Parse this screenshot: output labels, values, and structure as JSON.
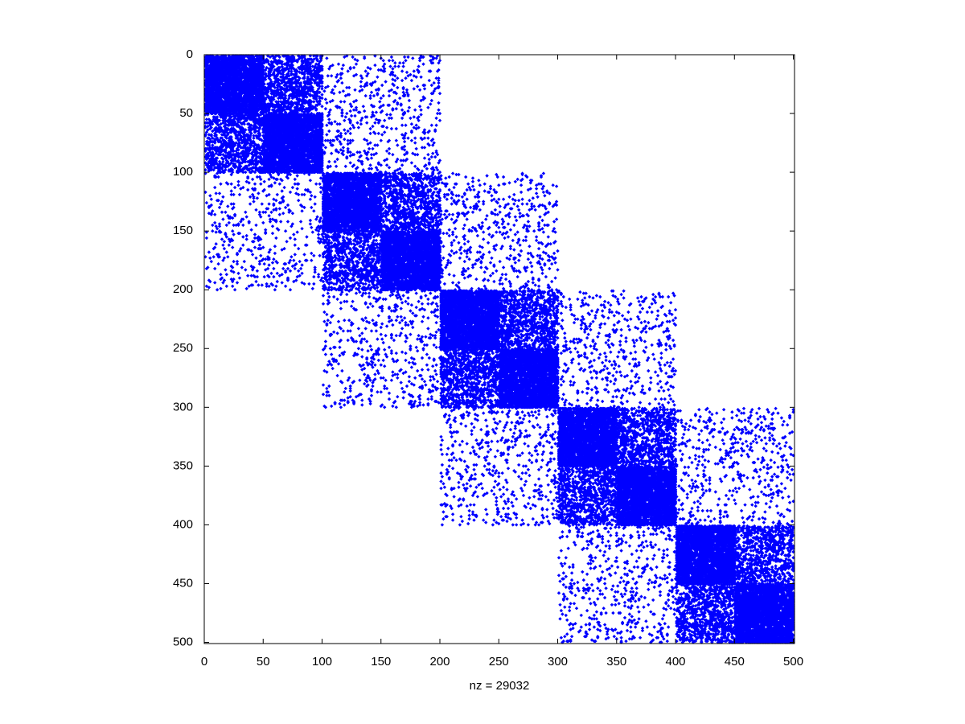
{
  "chart_data": {
    "type": "spy",
    "xlabel": "nz = 29032",
    "xlim": [
      0,
      501
    ],
    "ylim": [
      0,
      501
    ],
    "y_reversed": true,
    "color": "#0000ff",
    "xticks": [
      0,
      50,
      100,
      150,
      200,
      250,
      300,
      350,
      400,
      450,
      500
    ],
    "yticks": [
      0,
      50,
      100,
      150,
      200,
      250,
      300,
      350,
      400,
      450,
      500
    ],
    "blocks": [
      {
        "row_start": 0,
        "row_end": 50,
        "col_start": 0,
        "col_end": 50,
        "density": 0.7
      },
      {
        "row_start": 50,
        "row_end": 100,
        "col_start": 50,
        "col_end": 100,
        "density": 0.7
      },
      {
        "row_start": 100,
        "row_end": 150,
        "col_start": 100,
        "col_end": 150,
        "density": 0.7
      },
      {
        "row_start": 150,
        "row_end": 200,
        "col_start": 150,
        "col_end": 200,
        "density": 0.7
      },
      {
        "row_start": 200,
        "row_end": 250,
        "col_start": 200,
        "col_end": 250,
        "density": 0.7
      },
      {
        "row_start": 250,
        "row_end": 300,
        "col_start": 250,
        "col_end": 300,
        "density": 0.7
      },
      {
        "row_start": 300,
        "row_end": 350,
        "col_start": 300,
        "col_end": 350,
        "density": 0.7
      },
      {
        "row_start": 350,
        "row_end": 400,
        "col_start": 350,
        "col_end": 400,
        "density": 0.7
      },
      {
        "row_start": 400,
        "row_end": 450,
        "col_start": 400,
        "col_end": 450,
        "density": 0.7
      },
      {
        "row_start": 450,
        "row_end": 500,
        "col_start": 450,
        "col_end": 500,
        "density": 0.7
      },
      {
        "row_start": 0,
        "row_end": 50,
        "col_start": 50,
        "col_end": 100,
        "density": 0.3
      },
      {
        "row_start": 50,
        "row_end": 100,
        "col_start": 0,
        "col_end": 50,
        "density": 0.3
      },
      {
        "row_start": 100,
        "row_end": 150,
        "col_start": 150,
        "col_end": 200,
        "density": 0.3
      },
      {
        "row_start": 150,
        "row_end": 200,
        "col_start": 100,
        "col_end": 150,
        "density": 0.3
      },
      {
        "row_start": 200,
        "row_end": 250,
        "col_start": 250,
        "col_end": 300,
        "density": 0.3
      },
      {
        "row_start": 250,
        "row_end": 300,
        "col_start": 200,
        "col_end": 250,
        "density": 0.3
      },
      {
        "row_start": 300,
        "row_end": 350,
        "col_start": 350,
        "col_end": 400,
        "density": 0.3
      },
      {
        "row_start": 350,
        "row_end": 400,
        "col_start": 300,
        "col_end": 350,
        "density": 0.3
      },
      {
        "row_start": 400,
        "row_end": 450,
        "col_start": 450,
        "col_end": 500,
        "density": 0.3
      },
      {
        "row_start": 450,
        "row_end": 500,
        "col_start": 400,
        "col_end": 450,
        "density": 0.3
      },
      {
        "row_start": 0,
        "row_end": 100,
        "col_start": 100,
        "col_end": 200,
        "density": 0.05
      },
      {
        "row_start": 100,
        "row_end": 200,
        "col_start": 0,
        "col_end": 100,
        "density": 0.05
      },
      {
        "row_start": 100,
        "row_end": 200,
        "col_start": 200,
        "col_end": 300,
        "density": 0.05
      },
      {
        "row_start": 200,
        "row_end": 300,
        "col_start": 100,
        "col_end": 200,
        "density": 0.05
      },
      {
        "row_start": 200,
        "row_end": 300,
        "col_start": 300,
        "col_end": 400,
        "density": 0.05
      },
      {
        "row_start": 300,
        "row_end": 400,
        "col_start": 200,
        "col_end": 300,
        "density": 0.05
      },
      {
        "row_start": 300,
        "row_end": 400,
        "col_start": 400,
        "col_end": 500,
        "density": 0.05
      },
      {
        "row_start": 400,
        "row_end": 500,
        "col_start": 300,
        "col_end": 400,
        "density": 0.05
      }
    ]
  }
}
